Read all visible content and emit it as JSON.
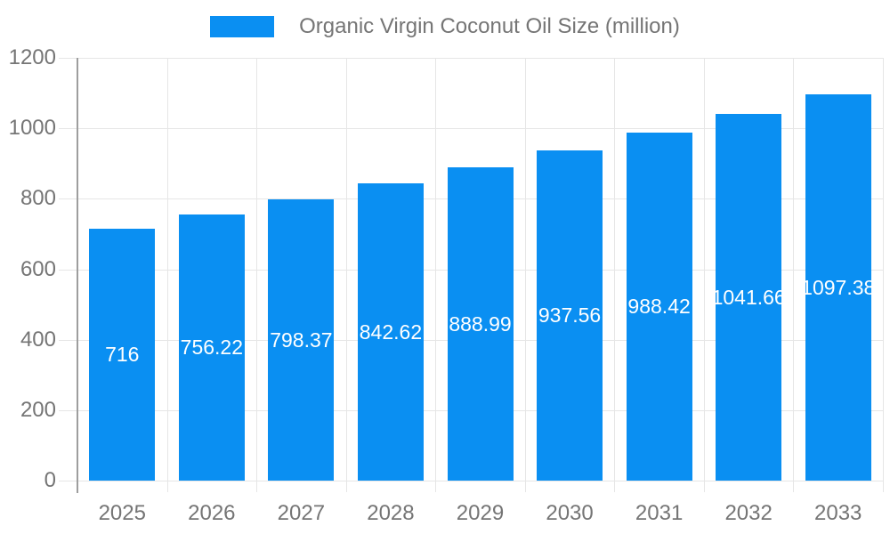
{
  "legend": {
    "label": "Organic Virgin Coconut Oil Size (million)"
  },
  "colors": {
    "bar": "#0a8ff2",
    "grid": "#e6e6e6",
    "axis_line": "#9e9e9e",
    "tick_text": "#757575",
    "bar_label_text": "#ffffff",
    "background": "#ffffff"
  },
  "chart_data": {
    "type": "bar",
    "title": "Organic Virgin Coconut Oil Size (million)",
    "categories": [
      "2025",
      "2026",
      "2027",
      "2028",
      "2029",
      "2030",
      "2031",
      "2032",
      "2033"
    ],
    "series": [
      {
        "name": "Organic Virgin Coconut Oil Size (million)",
        "values": [
          716,
          756.22,
          798.37,
          842.62,
          888.99,
          937.56,
          988.42,
          1041.66,
          1097.38
        ]
      }
    ],
    "data_labels": [
      "716",
      "756.22",
      "798.37",
      "842.62",
      "888.99",
      "937.56",
      "988.42",
      "1041.66",
      "1097.38"
    ],
    "xlabel": "",
    "ylabel": "",
    "ylim": [
      0,
      1200
    ],
    "yticks": [
      0,
      200,
      400,
      600,
      800,
      1000,
      1200
    ],
    "grid": true,
    "legend_position": "top-center",
    "bar_color": "#0a8ff2",
    "label_position": "inside-middle"
  }
}
